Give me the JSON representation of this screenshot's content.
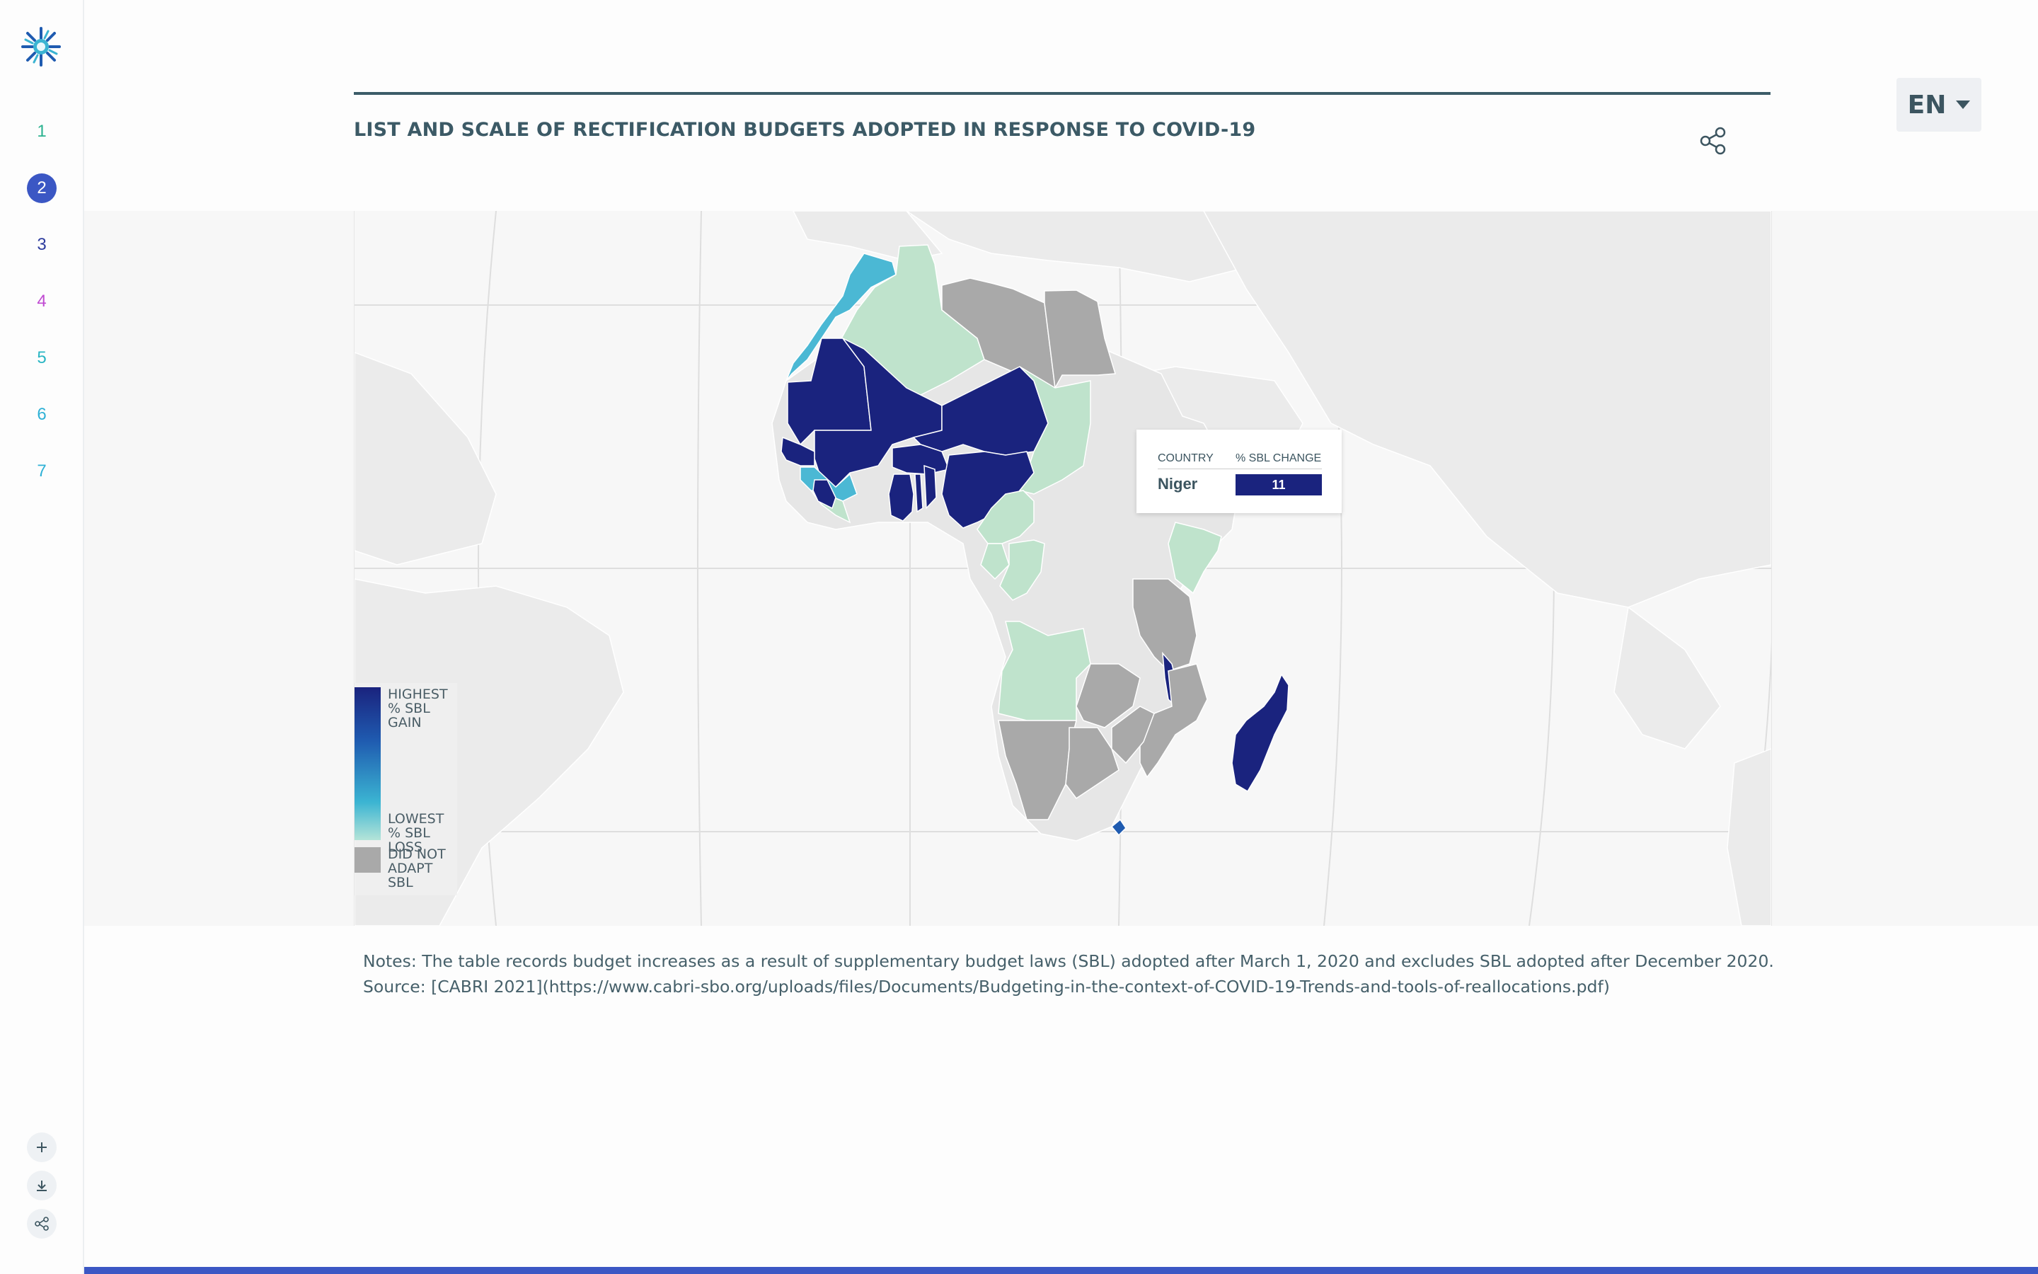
{
  "sidebar": {
    "logo": "sun-logo",
    "nav": [
      {
        "label": "1",
        "color": "#2bb28f"
      },
      {
        "label": "2",
        "color": "#ffffff",
        "active": true
      },
      {
        "label": "3",
        "color": "#2d3c9e"
      },
      {
        "label": "4",
        "color": "#c04ad2"
      },
      {
        "label": "5",
        "color": "#2bb6c4"
      },
      {
        "label": "6",
        "color": "#2fb1d6"
      },
      {
        "label": "7",
        "color": "#2fb1d6"
      }
    ],
    "tools": [
      "plus-icon",
      "download-icon",
      "share-icon"
    ]
  },
  "header": {
    "title": "LIST AND SCALE OF RECTIFICATION BUDGETS ADOPTED IN RESPONSE TO COVID-19",
    "language": "EN"
  },
  "map": {
    "tooltip": {
      "col_country": "COUNTRY",
      "col_change": "% SBL CHANGE",
      "country": "Niger",
      "value": "11"
    },
    "legend": {
      "high": "HIGHEST % SBL GAIN",
      "low": "LOWEST % SBL LOSS",
      "none": "DID NOT ADAPT SBL"
    },
    "colors": {
      "highest_gain": "#1a237e",
      "mid": "#1f5bb0",
      "low_blue": "#4bb8d4",
      "lowest_loss": "#bfe3cc",
      "did_not_adapt": "#a9a9a9",
      "no_data": "#e6e6e6"
    },
    "country_categories": {
      "Morocco": "low_blue",
      "Algeria": "lowest_loss",
      "Chad": "lowest_loss",
      "Libya": "did_not_adapt",
      "Egypt": "did_not_adapt",
      "Mauritania": "highest_gain",
      "Mali": "highest_gain",
      "Niger": "highest_gain",
      "Senegal": "highest_gain",
      "Burkina Faso": "highest_gain",
      "Nigeria": "highest_gain",
      "Ghana": "highest_gain",
      "Liberia": "highest_gain",
      "Benin": "highest_gain",
      "Togo": "highest_gain",
      "Guinea": "low_blue",
      "Sierra Leone": "lowest_loss",
      "Cameroon": "lowest_loss",
      "Congo": "lowest_loss",
      "Gabon": "lowest_loss",
      "Kenya": "lowest_loss",
      "Angola": "lowest_loss",
      "Tanzania": "did_not_adapt",
      "Malawi": "highest_gain",
      "Mozambique": "did_not_adapt",
      "Zimbabwe": "did_not_adapt",
      "Zambia": "did_not_adapt",
      "Namibia": "did_not_adapt",
      "Botswana": "did_not_adapt",
      "Madagascar": "highest_gain",
      "Lesotho": "mid"
    }
  },
  "notes": {
    "line1": "Notes: The table records budget increases as a result of supplementary budget laws (SBL) adopted after March 1, 2020 and excludes SBL adopted after December 2020.",
    "line2": "Source: [CABRI 2021](https://www.cabri-sbo.org/uploads/files/Documents/Budgeting-in-the-context-of-COVID-19-Trends-and-tools-of-reallocations.pdf)"
  }
}
